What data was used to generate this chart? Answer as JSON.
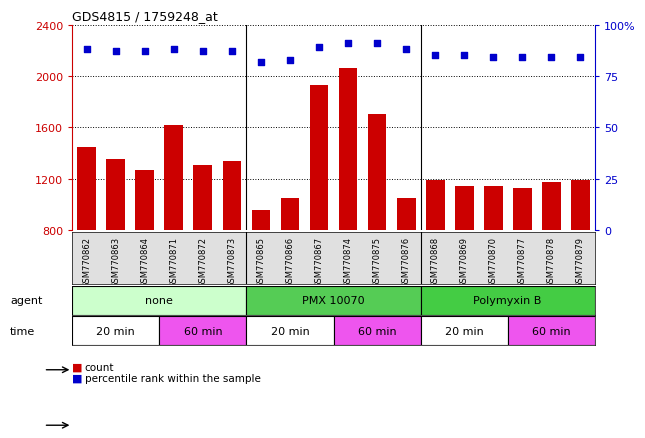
{
  "title": "GDS4815 / 1759248_at",
  "samples": [
    "GSM770862",
    "GSM770863",
    "GSM770864",
    "GSM770871",
    "GSM770872",
    "GSM770873",
    "GSM770865",
    "GSM770866",
    "GSM770867",
    "GSM770874",
    "GSM770875",
    "GSM770876",
    "GSM770868",
    "GSM770869",
    "GSM770870",
    "GSM770877",
    "GSM770878",
    "GSM770879"
  ],
  "counts": [
    1450,
    1350,
    1270,
    1615,
    1310,
    1340,
    960,
    1050,
    1930,
    2065,
    1700,
    1050,
    1190,
    1140,
    1140,
    1130,
    1175,
    1190
  ],
  "percentile_ranks": [
    88,
    87,
    87,
    88,
    87,
    87,
    82,
    83,
    89,
    91,
    91,
    88,
    85,
    85,
    84,
    84,
    84,
    84
  ],
  "bar_color": "#cc0000",
  "dot_color": "#0000cc",
  "ylim_left": [
    800,
    2400
  ],
  "ylim_right": [
    0,
    100
  ],
  "yticks_left": [
    800,
    1200,
    1600,
    2000,
    2400
  ],
  "yticks_right": [
    0,
    25,
    50,
    75,
    100
  ],
  "agent_groups": [
    {
      "label": "none",
      "start": 0,
      "end": 6,
      "color": "#ccffcc"
    },
    {
      "label": "PMX 10070",
      "start": 6,
      "end": 12,
      "color": "#55cc55"
    },
    {
      "label": "Polymyxin B",
      "start": 12,
      "end": 18,
      "color": "#44cc44"
    }
  ],
  "time_groups": [
    {
      "label": "20 min",
      "start": 0,
      "end": 3,
      "color": "#ffffff"
    },
    {
      "label": "60 min",
      "start": 3,
      "end": 6,
      "color": "#ee55ee"
    },
    {
      "label": "20 min",
      "start": 6,
      "end": 9,
      "color": "#ffffff"
    },
    {
      "label": "60 min",
      "start": 9,
      "end": 12,
      "color": "#ee55ee"
    },
    {
      "label": "20 min",
      "start": 12,
      "end": 15,
      "color": "#ffffff"
    },
    {
      "label": "60 min",
      "start": 15,
      "end": 18,
      "color": "#ee55ee"
    }
  ],
  "left_axis_color": "#cc0000",
  "right_axis_color": "#0000cc",
  "xticklabel_bg": "#e0e0e0"
}
